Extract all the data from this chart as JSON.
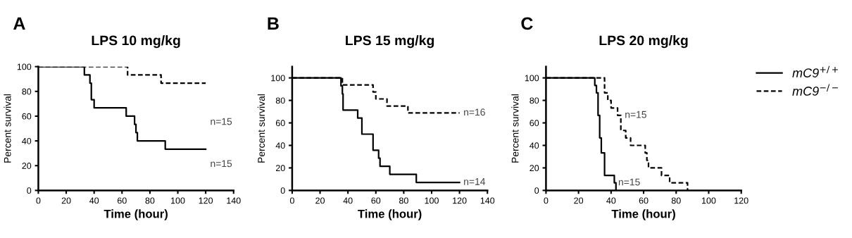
{
  "chart_data": [
    {
      "type": "step",
      "title": "LPS 10 mg/kg",
      "xlabel": "Time (hour)",
      "ylabel": "Percent survival",
      "xlim": [
        0,
        140
      ],
      "xticks": [
        0,
        20,
        40,
        60,
        80,
        100,
        120,
        140
      ],
      "ylim": [
        0,
        100
      ],
      "yticks": [
        0,
        20,
        40,
        60,
        80,
        100
      ],
      "grid": false,
      "legend": false,
      "annotations": [
        "A",
        "n=15",
        "n=15"
      ],
      "series": [
        {
          "color": "#000000",
          "line_style": "solid",
          "x": [
            0,
            33,
            37,
            38,
            40,
            63,
            69,
            70,
            71,
            91,
            120
          ],
          "values": [
            100,
            93.3,
            86.7,
            73.3,
            66.7,
            60,
            53.3,
            46.7,
            40,
            33.3,
            33.3
          ]
        },
        {
          "color": "#000000",
          "line_style": "dashed",
          "x": [
            0,
            64,
            88,
            120
          ],
          "values": [
            100,
            93.3,
            86.7,
            86.7
          ]
        }
      ]
    },
    {
      "type": "step",
      "title": "LPS 15 mg/kg",
      "xlabel": "Time (hour)",
      "ylabel": "Percent survival",
      "xlim": [
        0,
        140
      ],
      "xticks": [
        0,
        20,
        40,
        60,
        80,
        100,
        120,
        140
      ],
      "ylim": [
        0,
        110
      ],
      "yticks": [
        0,
        20,
        40,
        60,
        80,
        100
      ],
      "grid": false,
      "legend": false,
      "annotations": [
        "B",
        {
          "text": "n=16",
          "x": 120,
          "y": 68.8
        },
        {
          "text": "n=14",
          "x": 120,
          "y": 7.1
        }
      ],
      "series": [
        {
          "color": "#000000",
          "line_style": "solid",
          "x": [
            0,
            35,
            36,
            36.5,
            47,
            50,
            58,
            62,
            63,
            70,
            89,
            120
          ],
          "values": [
            100,
            92.9,
            85.7,
            71.4,
            64.3,
            50,
            35.7,
            28.6,
            21.4,
            14.3,
            7.1,
            7.1
          ]
        },
        {
          "color": "#000000",
          "line_style": "dashed",
          "x": [
            0,
            36,
            58,
            60,
            68,
            83,
            120
          ],
          "values": [
            100,
            93.8,
            87.5,
            81.3,
            75,
            68.8,
            68.8
          ]
        }
      ]
    },
    {
      "type": "step",
      "title": "LPS 20 mg/kg",
      "xlabel": "Time (hour)",
      "ylabel": "Percent survival",
      "xlim": [
        0,
        120
      ],
      "xticks": [
        0,
        20,
        40,
        60,
        80,
        100,
        120
      ],
      "ylim": [
        0,
        110
      ],
      "yticks": [
        0,
        20,
        40,
        60,
        80,
        100
      ],
      "grid": false,
      "legend": "top right",
      "annotations": [
        "C",
        {
          "text": "n=15",
          "x": 46,
          "y": 66.7
        },
        {
          "text": "n=15",
          "x": 42,
          "y": 6.7
        }
      ],
      "series": [
        {
          "name": "mC9$^{+/+}$",
          "color": "#000000",
          "line_style": "solid",
          "x": [
            0,
            30,
            31,
            32,
            33,
            34,
            36,
            42,
            43
          ],
          "values": [
            100,
            93.3,
            86.7,
            66.7,
            46.7,
            33.3,
            13.3,
            6.7,
            0
          ]
        },
        {
          "name": "mC9$^{−/−}$",
          "color": "#000000",
          "line_style": "dashed",
          "x": [
            0,
            36,
            38,
            40,
            44,
            46,
            49,
            52,
            61,
            62,
            63,
            71,
            76,
            87
          ],
          "values": [
            100,
            86.7,
            80,
            73.3,
            66.7,
            53.3,
            46.7,
            40,
            33.3,
            26.7,
            20,
            13.3,
            6.7,
            0
          ]
        }
      ]
    }
  ]
}
